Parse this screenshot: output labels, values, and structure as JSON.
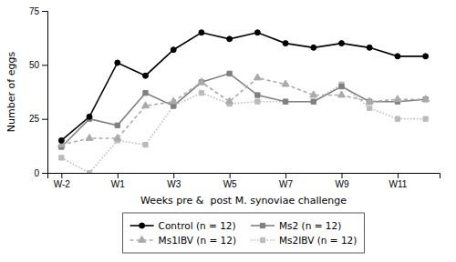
{
  "chart_data": {
    "type": "line",
    "x": [
      0,
      1,
      2,
      3,
      4,
      5,
      6,
      7,
      8,
      9,
      10,
      11,
      12,
      13
    ],
    "xlim": [
      -0.5,
      13.5
    ],
    "xticks": [
      {
        "value": 0,
        "label": "W-2"
      },
      {
        "value": 2,
        "label": "W1"
      },
      {
        "value": 4,
        "label": "W3"
      },
      {
        "value": 6,
        "label": "W5"
      },
      {
        "value": 8,
        "label": "W7"
      },
      {
        "value": 10,
        "label": "W9"
      },
      {
        "value": 12,
        "label": "W11"
      }
    ],
    "ylim": [
      0,
      75
    ],
    "yticks": [
      0,
      25,
      50,
      75
    ],
    "x_label": "Weeks pre &  post M. synoviae challenge",
    "y_label": "Number of eggs",
    "grid": false,
    "legend": "bottom",
    "series": [
      {
        "name": "Control (n = 12)",
        "color": "#000000",
        "marker": "circle",
        "line_style": "solid",
        "values": [
          15,
          26,
          51,
          45,
          57,
          65,
          62,
          65,
          60,
          58,
          60,
          58,
          54,
          54
        ]
      },
      {
        "name": "Ms1IBV (n = 12)",
        "color": "#aaaaaa",
        "marker": "triangle",
        "line_style": "dashed",
        "values": [
          13,
          16,
          16,
          31,
          33,
          42,
          33,
          44,
          41,
          36,
          36,
          33,
          34,
          34
        ]
      },
      {
        "name": "Ms2 (n = 12)",
        "color": "#808080",
        "marker": "square",
        "line_style": "solid",
        "values": [
          12,
          25,
          22,
          37,
          31,
          42,
          46,
          36,
          33,
          33,
          40,
          33,
          33,
          34
        ]
      },
      {
        "name": "Ms2IBV (n = 12)",
        "color": "#bbbbbb",
        "marker": "square",
        "line_style": "dotted",
        "values": [
          7,
          0,
          15,
          13,
          31,
          37,
          32,
          33,
          33,
          33,
          41,
          30,
          25,
          25
        ]
      }
    ]
  }
}
